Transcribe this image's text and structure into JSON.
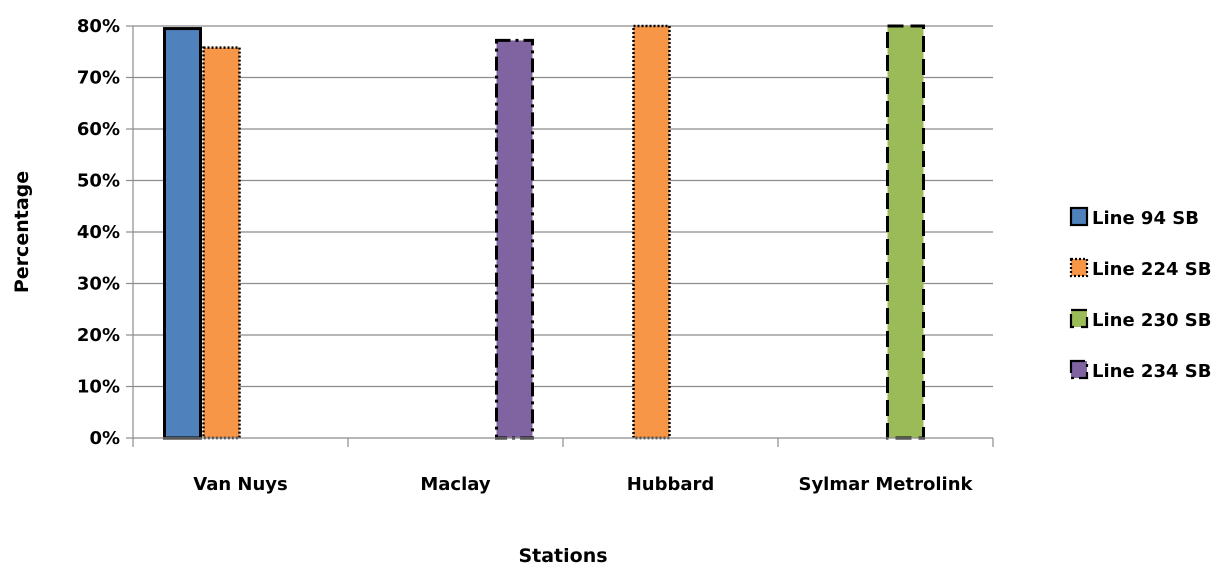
{
  "chart_data": {
    "type": "bar",
    "title": "",
    "xlabel": "Stations",
    "ylabel": "Percentage",
    "ylim": [
      0,
      80
    ],
    "y_ticks": [
      0,
      10,
      20,
      30,
      40,
      50,
      60,
      70,
      80
    ],
    "y_tick_suffix": "%",
    "grid": true,
    "legend_position": "right",
    "categories": [
      "Van Nuys",
      "Maclay",
      "Hubbard",
      "Sylmar Metrolink"
    ],
    "series": [
      {
        "name": "Line 94 SB",
        "color": "#4F81BD",
        "border": "solid",
        "values": [
          79.5,
          null,
          null,
          null
        ]
      },
      {
        "name": "Line 224 SB",
        "color": "#F79646",
        "border": "dotted",
        "values": [
          75.8,
          null,
          80,
          null
        ]
      },
      {
        "name": "Line 230 SB",
        "color": "#9BBB59",
        "border": "dashed",
        "values": [
          null,
          null,
          null,
          80
        ]
      },
      {
        "name": "Line 234 SB",
        "color": "#8064A2",
        "border": "dash-dot",
        "values": [
          null,
          77.2,
          null,
          null
        ]
      }
    ]
  }
}
